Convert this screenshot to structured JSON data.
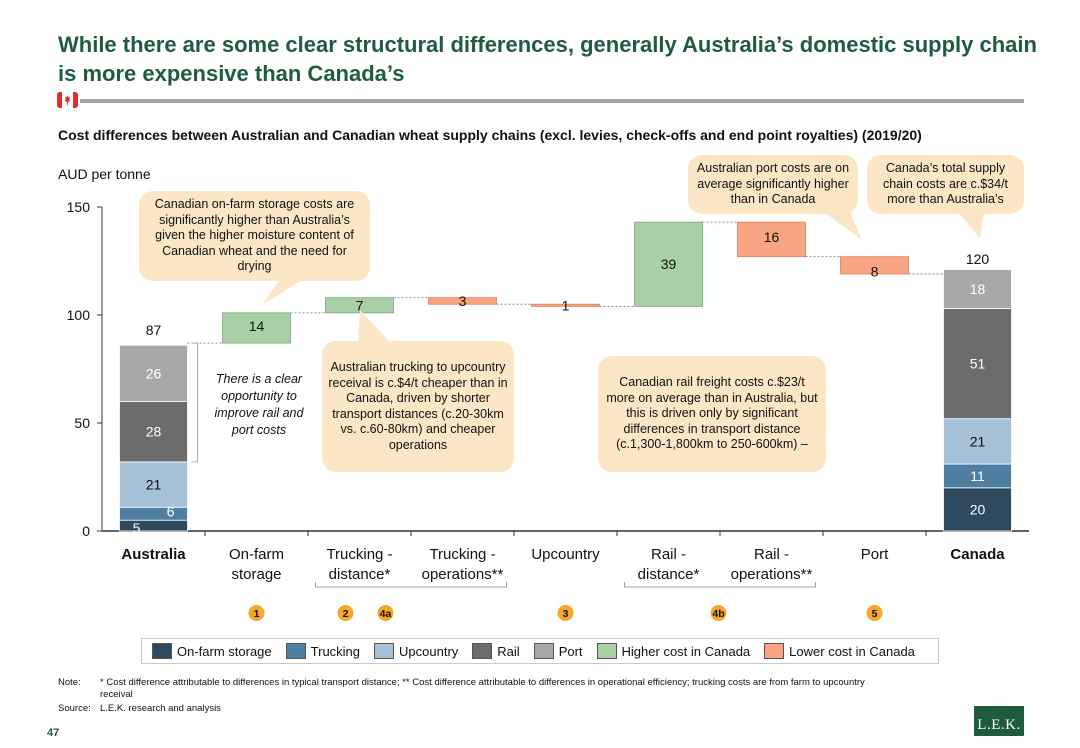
{
  "title": "While there are some clear structural differences, generally Australia’s domestic supply chain is more expensive than Canada’s",
  "colors": {
    "title_green": "#1f5c3e",
    "on_farm_storage": "#2f4a5e",
    "trucking": "#4f7ea3",
    "upcountry": "#a6c0d6",
    "rail": "#6c6c6c",
    "port": "#a8a8a8",
    "higher_cost_canada": "#a9cfa7",
    "lower_cost_canada": "#f7a582",
    "callout": "#fbe6c5",
    "badge": "#f6a82a"
  },
  "chart_data": {
    "type": "bar",
    "title": "Cost differences between Australian and Canadian wheat supply chains (excl. levies, check-offs and end point royalties) (2019/20)",
    "ylabel": "AUD per tonne",
    "ylim": [
      0,
      150
    ],
    "yticks": [
      "0",
      "50",
      "100",
      "150"
    ],
    "categories": [
      {
        "lines": [
          "Australia"
        ],
        "bold": true
      },
      {
        "lines": [
          "On-farm",
          "storage"
        ]
      },
      {
        "lines": [
          "Trucking -",
          "distance*"
        ]
      },
      {
        "lines": [
          "Trucking -",
          "operations**"
        ]
      },
      {
        "lines": [
          "Upcountry"
        ]
      },
      {
        "lines": [
          "Rail -",
          "distance*"
        ]
      },
      {
        "lines": [
          "Rail -",
          "operations**"
        ]
      },
      {
        "lines": [
          "Port"
        ]
      },
      {
        "lines": [
          "Canada"
        ],
        "bold": true
      }
    ],
    "stacked_totals": [
      {
        "category": "Australia",
        "total": 87,
        "total_label": "87",
        "segments": [
          {
            "series": "On-farm storage",
            "value": 5,
            "label": "5"
          },
          {
            "series": "Trucking",
            "value": 6,
            "label": "6"
          },
          {
            "series": "Upcountry",
            "value": 21,
            "label": "21"
          },
          {
            "series": "Rail",
            "value": 28,
            "label": "28"
          },
          {
            "series": "Port",
            "value": 26,
            "label": "26"
          }
        ]
      },
      {
        "category": "Canada",
        "total": 120,
        "total_label": "120",
        "segments": [
          {
            "series": "On-farm storage",
            "value": 20,
            "label": "20"
          },
          {
            "series": "Trucking",
            "value": 11,
            "label": "11"
          },
          {
            "series": "Upcountry",
            "value": 21,
            "label": "21"
          },
          {
            "series": "Rail",
            "value": 51,
            "label": "51"
          },
          {
            "series": "Port",
            "value": 18,
            "label": "18"
          }
        ]
      }
    ],
    "bridge_steps": [
      {
        "category": "On-farm storage",
        "delta": 14,
        "label": "14",
        "type": "higher"
      },
      {
        "category": "Trucking - distance*",
        "delta": 7,
        "label": "7",
        "type": "higher"
      },
      {
        "category": "Trucking - operations**",
        "delta": -3,
        "label": "3",
        "type": "lower"
      },
      {
        "category": "Upcountry",
        "delta": -1,
        "label": "1",
        "type": "lower"
      },
      {
        "category": "Rail - distance*",
        "delta": 39,
        "label": "39",
        "type": "higher"
      },
      {
        "category": "Rail - operations**",
        "delta": -16,
        "label": "16",
        "type": "lower"
      },
      {
        "category": "Port",
        "delta": -8,
        "label": "8",
        "type": "lower"
      }
    ],
    "badges": [
      {
        "category_index": 1,
        "label": "1"
      },
      {
        "category_index": 2.5,
        "label": "2"
      },
      {
        "category_index": 2.5,
        "label": "4a"
      },
      {
        "category_index": 4,
        "label": "3"
      },
      {
        "category_index": 5.5,
        "label": "4b"
      },
      {
        "category_index": 7,
        "label": "5"
      }
    ],
    "legend": [
      {
        "name": "On-farm storage",
        "color": "#2f4a5e"
      },
      {
        "name": "Trucking",
        "color": "#4f7ea3"
      },
      {
        "name": "Upcountry",
        "color": "#a6c0d6"
      },
      {
        "name": "Rail",
        "color": "#6c6c6c"
      },
      {
        "name": "Port",
        "color": "#a8a8a8"
      },
      {
        "name": "Higher cost in Canada",
        "color": "#a9cfa7"
      },
      {
        "name": "Lower cost in Canada",
        "color": "#f7a582"
      }
    ],
    "legend_position": "bottom"
  },
  "annotations": {
    "farm_storage": "Canadian on-farm storage costs are significantly higher than Australia’s given the higher moisture content of Canadian wheat and the need for drying",
    "opportunity": "There is a clear opportunity to improve rail and port costs",
    "trucking": "Australian trucking to upcountry receival is c.$4/t cheaper than in Canada, driven by shorter transport distances (c.20-30km vs. c.60-80km) and cheaper operations",
    "rail": "Canadian rail freight costs c.$23/t more on average than in Australia, but this is driven only by significant differences in transport distance (c.1,300-1,800km to 250-600km) –",
    "port": "Australian port costs are on average significantly higher than in Canada",
    "total": "Canada’s total supply chain costs are c.$34/t more than Australia’s"
  },
  "footnotes": {
    "note_label": "Note:",
    "note_text": "* Cost difference attributable to differences in typical transport distance; ** Cost difference attributable to differences in operational efficiency; trucking costs are from farm to upcountry receival",
    "source_label": "Source:",
    "source_text": "L.E.K. research and analysis"
  },
  "page_number": "47",
  "logo_text": "L.E.K."
}
